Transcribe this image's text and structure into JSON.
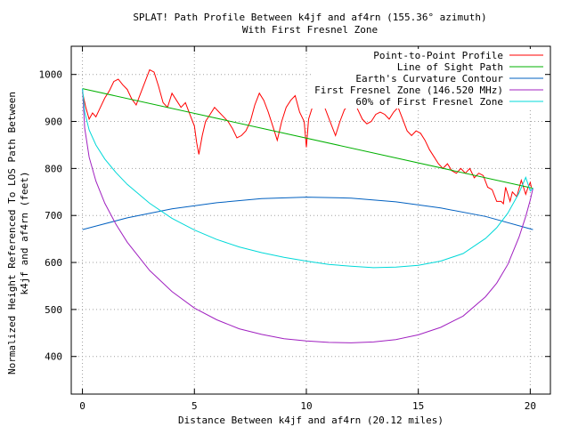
{
  "chart_data": {
    "type": "line",
    "title": "SPLAT! Path Profile Between k4jf and af4rn (155.36° azimuth)",
    "subtitle": "With First Fresnel Zone",
    "xlabel": "Distance Between k4jf and af4rn (20.12 miles)",
    "ylabel_line1": "Normalized Height Referenced To LOS Path Between",
    "ylabel_line2": "k4jf and af4rn (feet)",
    "xlim": [
      -0.5,
      20.9
    ],
    "ylim": [
      320,
      1060
    ],
    "x_ticks": [
      0,
      5,
      10,
      15,
      20
    ],
    "x_tick_labels": [
      "0",
      "5",
      "10",
      "15",
      "20"
    ],
    "y_ticks": [
      400,
      500,
      600,
      700,
      800,
      900,
      1000
    ],
    "y_tick_labels": [
      "400",
      "500",
      "600",
      "700",
      "800",
      "900",
      "1000"
    ],
    "grid": true,
    "legend_position": "top-right",
    "series": [
      {
        "name": "Point-to-Point Profile",
        "color": "#ff0000",
        "x": [
          0,
          0.15,
          0.3,
          0.45,
          0.6,
          0.8,
          1.0,
          1.2,
          1.4,
          1.6,
          1.8,
          2.0,
          2.2,
          2.4,
          2.6,
          2.8,
          3.0,
          3.2,
          3.4,
          3.6,
          3.8,
          4.0,
          4.2,
          4.4,
          4.6,
          4.8,
          5.0,
          5.1,
          5.2,
          5.35,
          5.5,
          5.7,
          5.9,
          6.1,
          6.3,
          6.5,
          6.7,
          6.9,
          7.1,
          7.3,
          7.5,
          7.7,
          7.9,
          8.1,
          8.3,
          8.5,
          8.7,
          8.9,
          9.1,
          9.3,
          9.5,
          9.7,
          9.9,
          10.0,
          10.1,
          10.3,
          10.5,
          10.7,
          10.9,
          11.1,
          11.3,
          11.5,
          11.7,
          11.9,
          12.1,
          12.3,
          12.5,
          12.7,
          12.9,
          13.1,
          13.3,
          13.5,
          13.7,
          13.9,
          14.1,
          14.3,
          14.5,
          14.7,
          14.9,
          15.1,
          15.3,
          15.5,
          15.7,
          15.9,
          16.1,
          16.3,
          16.5,
          16.7,
          16.9,
          17.1,
          17.3,
          17.5,
          17.7,
          17.9,
          18.1,
          18.3,
          18.5,
          18.7,
          18.8,
          18.9,
          19.0,
          19.1,
          19.2,
          19.4,
          19.6,
          19.7,
          19.8,
          19.9,
          20.0,
          20.05
        ],
        "values": [
          962,
          930,
          905,
          918,
          910,
          930,
          950,
          965,
          985,
          990,
          978,
          968,
          948,
          935,
          960,
          985,
          1010,
          1005,
          975,
          940,
          930,
          960,
          945,
          930,
          940,
          915,
          890,
          855,
          830,
          870,
          900,
          915,
          930,
          920,
          910,
          900,
          885,
          865,
          870,
          880,
          900,
          935,
          960,
          945,
          920,
          890,
          860,
          900,
          930,
          945,
          955,
          920,
          900,
          845,
          905,
          935,
          955,
          945,
          920,
          895,
          870,
          900,
          925,
          935,
          945,
          925,
          905,
          895,
          900,
          915,
          920,
          915,
          905,
          920,
          930,
          905,
          880,
          870,
          880,
          875,
          860,
          840,
          825,
          810,
          800,
          810,
          795,
          790,
          800,
          790,
          800,
          780,
          790,
          785,
          760,
          755,
          730,
          730,
          725,
          760,
          745,
          730,
          750,
          740,
          775,
          760,
          745,
          760,
          770,
          760
        ]
      },
      {
        "name": "Line of Sight Path",
        "color": "#00b000",
        "x": [
          0,
          20.12
        ],
        "values": [
          970,
          758
        ]
      },
      {
        "name": "Earth's Curvature Contour",
        "color": "#0060c0",
        "x": [
          0,
          2,
          4,
          6,
          8,
          10,
          12,
          14,
          16,
          18,
          20.12
        ],
        "values": [
          670,
          695,
          714,
          727,
          736,
          739,
          737,
          729,
          716,
          698,
          670
        ]
      },
      {
        "name": "First Fresnel Zone (146.520 MHz)",
        "color": "#a020c0",
        "x": [
          0,
          0.1,
          0.3,
          0.6,
          1,
          1.5,
          2,
          3,
          4,
          5,
          6,
          7,
          8,
          9,
          10,
          11,
          12,
          13,
          14,
          15,
          16,
          17,
          18,
          18.5,
          19,
          19.5,
          19.8,
          20,
          20.12
        ],
        "values": [
          970,
          886,
          824,
          773,
          726,
          681,
          643,
          583,
          538,
          503,
          478,
          459,
          447,
          438,
          433,
          430,
          429,
          431,
          436,
          446,
          462,
          486,
          527,
          556,
          596,
          654,
          698,
          733,
          758
        ]
      },
      {
        "name": "60% of First Fresnel Zone",
        "color": "#00d8d8",
        "x": [
          0,
          0.1,
          0.3,
          0.6,
          1,
          1.5,
          2,
          3,
          4,
          5,
          6,
          7,
          8,
          9,
          10,
          11,
          12,
          13,
          14,
          15,
          16,
          17,
          18,
          18.5,
          19,
          19.5,
          19.8,
          20,
          20.12
        ],
        "values": [
          970,
          920,
          882,
          850,
          820,
          791,
          766,
          726,
          694,
          669,
          649,
          633,
          621,
          611,
          603,
          596,
          592,
          589,
          590,
          594,
          603,
          619,
          651,
          674,
          705,
          748,
          781,
          752,
          758
        ]
      }
    ]
  }
}
